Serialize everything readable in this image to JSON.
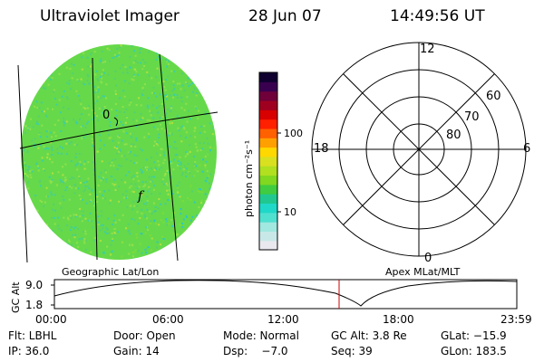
{
  "header": {
    "instrument": "Ultraviolet Imager",
    "date": "28 Jun 07",
    "time": "14:49:56 UT"
  },
  "image": {
    "geo_labels": [
      "0",
      "f"
    ],
    "fill_color": "#66d94a",
    "speckle_colors": [
      "#8fe04a",
      "#54d070",
      "#3fcfa0",
      "#2fc8c0",
      "#7cdc3a",
      "#b0e040"
    ]
  },
  "colorbar": {
    "unit_label": "photon cm⁻²s⁻¹",
    "ticks": [
      {
        "label": "100",
        "value": 100
      },
      {
        "label": "10",
        "value": 10
      }
    ],
    "colors": [
      "#e8e8ee",
      "#c8e8e8",
      "#a0e8e0",
      "#50e0d0",
      "#20d8c8",
      "#20c890",
      "#40cc40",
      "#80d820",
      "#b0e020",
      "#d8e020",
      "#ffd800",
      "#ffa000",
      "#ff6000",
      "#ff2000",
      "#d80000",
      "#a00020",
      "#70003a",
      "#3a0050",
      "#100030"
    ]
  },
  "polar": {
    "mlt_labels": [
      "12",
      "6",
      "0",
      "18"
    ],
    "lat_labels": [
      "60",
      "70",
      "80"
    ]
  },
  "timeline": {
    "left_title": "Geographic Lat/Lon",
    "right_title": "Apex MLat/MLT",
    "axis_label": "GC Alt",
    "y_ticks": [
      "9.0",
      "1.8"
    ],
    "x_ticks": [
      "00:00",
      "06:00",
      "12:00",
      "18:00",
      "23:59"
    ],
    "marker_time": "14:49:56",
    "marker_color": "#cc0000"
  },
  "footer": {
    "rows": [
      [
        "Flt: LBHL",
        "Door: Open",
        "Mode: Normal",
        "GC Alt: 3.8 Re",
        "GLat: −15.9"
      ],
      [
        "IP: 36.0",
        "Gain: 14",
        "Dsp:    −7.0",
        "Seq: 39",
        "GLon: 183.5"
      ]
    ]
  }
}
